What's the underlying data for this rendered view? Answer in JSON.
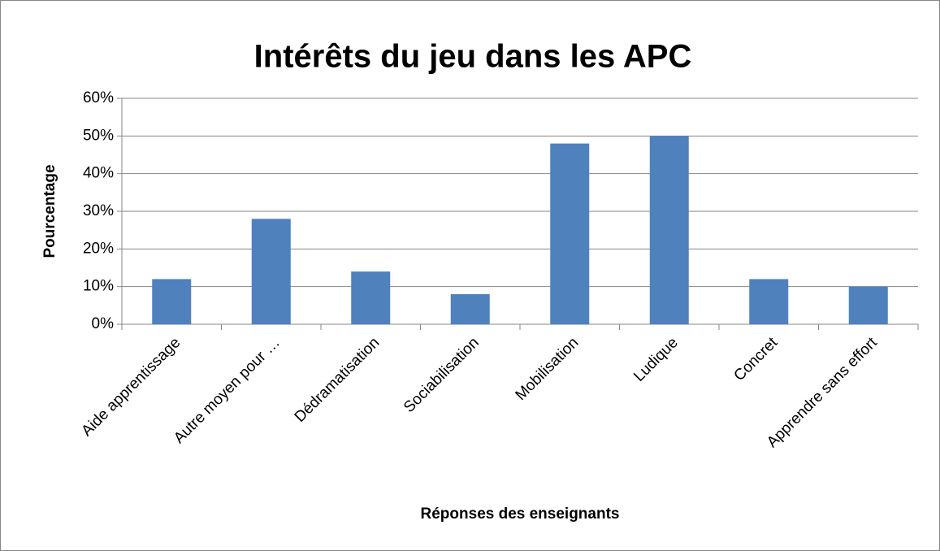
{
  "chart_data": {
    "type": "bar",
    "title": "Intérêts du jeu dans les APC",
    "x_label": "Réponses des enseignants",
    "y_label": "Pourcentage",
    "categories": [
      "Aide apprentissage",
      "Autre moyen pour …",
      "Dédramatisation",
      "Sociabilisation",
      "Mobilisation",
      "Ludique",
      "Concret",
      "Apprendre sans effort"
    ],
    "values": [
      12,
      28,
      14,
      8,
      48,
      50,
      12,
      10
    ],
    "color": "#4f81bd",
    "ylim": [
      0,
      60
    ],
    "yticks": [
      {
        "value": 0,
        "label": "0%"
      },
      {
        "value": 10,
        "label": "10%"
      },
      {
        "value": 20,
        "label": "20%"
      },
      {
        "value": 30,
        "label": "30%"
      },
      {
        "value": 40,
        "label": "40%"
      },
      {
        "value": 50,
        "label": "50%"
      },
      {
        "value": 60,
        "label": "60%"
      }
    ],
    "grid": true
  }
}
